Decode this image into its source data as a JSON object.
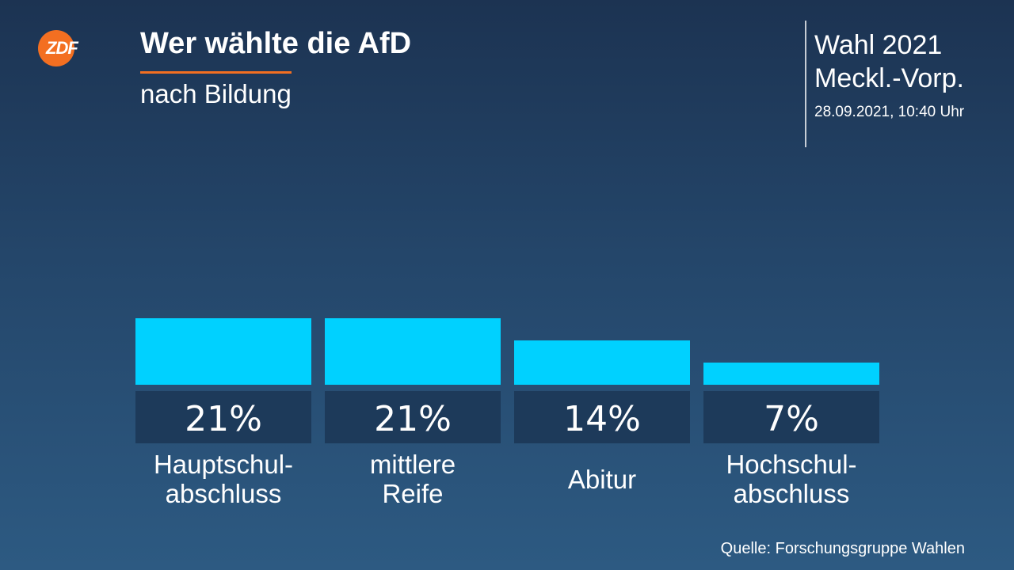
{
  "header": {
    "logo_text": "ZDF",
    "title": "Wer wählte die AfD",
    "subtitle": "nach Bildung"
  },
  "event": {
    "line1": "Wahl 2021",
    "line2": "Meckl.-Vorp.",
    "datetime": "28.09.2021, 10:40 Uhr"
  },
  "colors": {
    "bar": "#00d1ff",
    "accent": "#f36f21",
    "label_box": "#1d3a5a"
  },
  "chart_data": {
    "type": "bar",
    "title": "Wer wählte die AfD",
    "subtitle": "nach Bildung",
    "categories": [
      [
        "Hauptschul-",
        "abschluss"
      ],
      [
        "mittlere",
        "Reife"
      ],
      [
        "Abitur"
      ],
      [
        "Hochschul-",
        "abschluss"
      ]
    ],
    "values": [
      21,
      21,
      14,
      7
    ],
    "value_labels": [
      "21%",
      "21%",
      "14%",
      "7%"
    ],
    "unit": "%",
    "ylim": [
      0,
      21
    ]
  },
  "footer": {
    "source": "Quelle: Forschungsgruppe Wahlen"
  }
}
